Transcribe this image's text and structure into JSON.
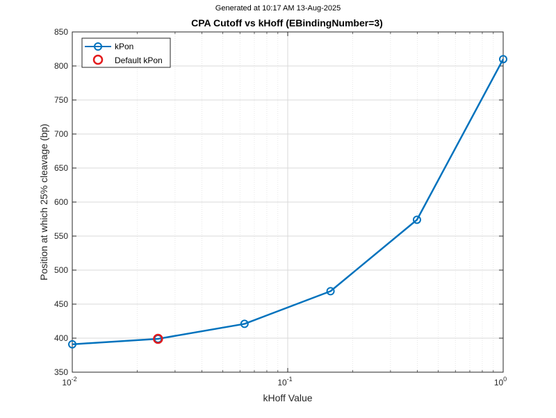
{
  "header": {
    "generated": "Generated at 10:17 AM 13-Aug-2025"
  },
  "chart_data": {
    "type": "line",
    "title": "CPA Cutoff vs kHoff (EBindingNumber=3)",
    "xlabel": "kHoff Value",
    "ylabel": "Position at which 25% cleavage (bp)",
    "xscale": "log",
    "xlim": [
      0.01,
      1
    ],
    "ylim": [
      350,
      850
    ],
    "grid": true,
    "legend_position": "top-left",
    "x_ticks": [
      {
        "base": "10",
        "exp": "-2",
        "value": 0.01
      },
      {
        "base": "10",
        "exp": "-1",
        "value": 0.1
      },
      {
        "base": "10",
        "exp": "0",
        "value": 1
      }
    ],
    "y_ticks": [
      "350",
      "400",
      "450",
      "500",
      "550",
      "600",
      "650",
      "700",
      "750",
      "800",
      "850"
    ],
    "series": [
      {
        "name": "kPon",
        "color": "#0072BD",
        "marker": "circle-open",
        "x": [
          0.01,
          0.025,
          0.063,
          0.158,
          0.398,
          1.0
        ],
        "y": [
          391,
          399,
          421,
          469,
          574,
          810
        ]
      }
    ],
    "highlight": {
      "name": "Default kPon",
      "color": "#E31A1C",
      "marker": "circle-open",
      "x": 0.025,
      "y": 399
    }
  }
}
